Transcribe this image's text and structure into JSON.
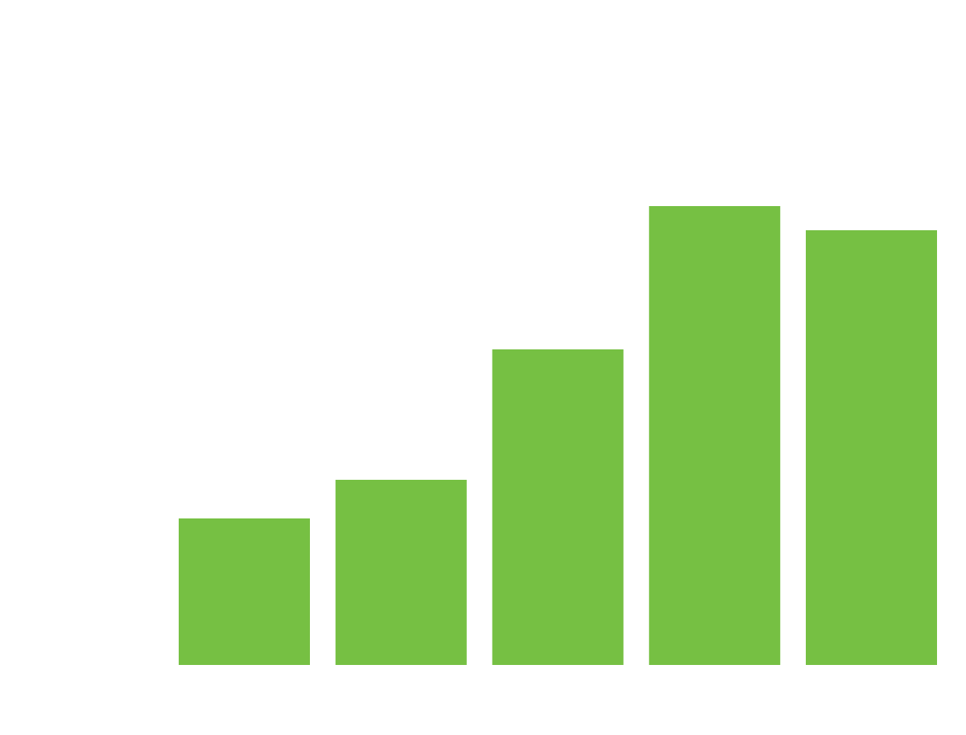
{
  "chart_data": {
    "type": "bar",
    "bar_color": "#76c043",
    "background_color": "#ffffff",
    "grid": false,
    "legend": "none",
    "values": [
      182,
      230,
      392,
      570,
      540
    ],
    "ylim": [
      0,
      826
    ]
  }
}
